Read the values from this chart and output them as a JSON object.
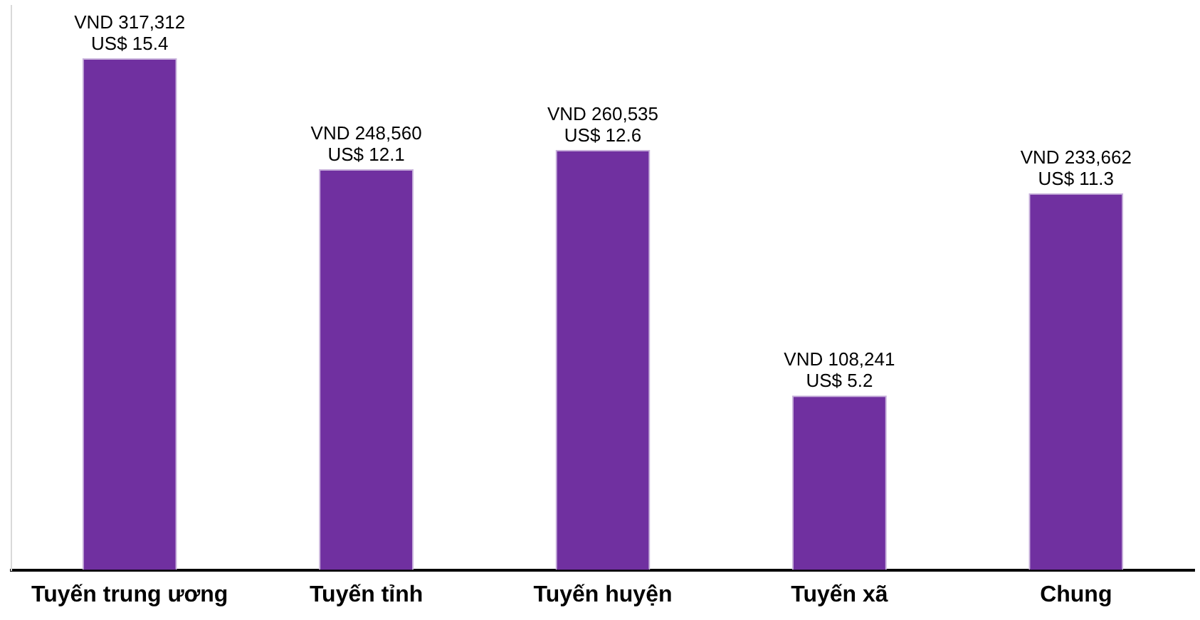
{
  "chart_data": {
    "type": "bar",
    "categories": [
      "Tuyến trung ương",
      "Tuyến tỉnh",
      "Tuyến huyện",
      "Tuyến xã",
      "Chung"
    ],
    "values": [
      317312,
      248560,
      260535,
      108241,
      233662
    ],
    "value_labels": [
      "VND 317,312\nUS$ 15.4",
      "VND 248,560\nUS$ 12.1",
      "VND 260,535\nUS$ 12.6",
      "VND 108,241\nUS$ 5.2",
      "VND 233,662\nUS$ 11.3"
    ],
    "color": "#7030a0",
    "grid": false,
    "legend": false
  }
}
